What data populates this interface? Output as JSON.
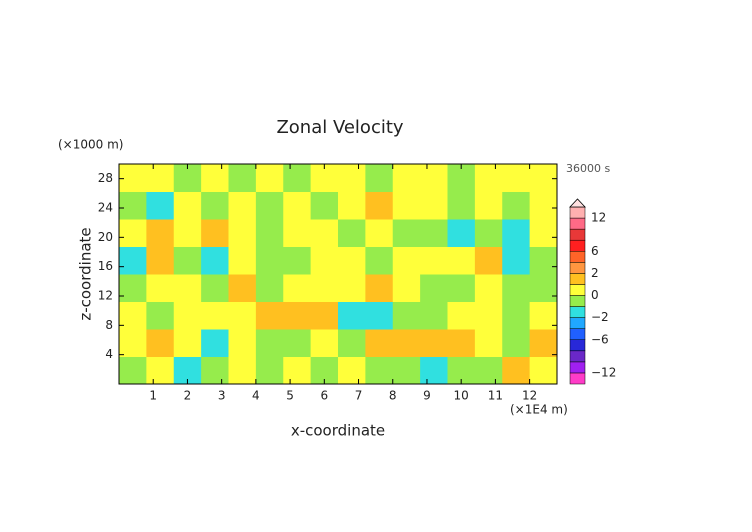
{
  "chart_data": {
    "type": "contour",
    "title": "Zonal Velocity",
    "x_label": "x-coordinate",
    "y_label": "z-coordinate",
    "x_unit": "(×1E4 m)",
    "y_unit": "(×1000 m)",
    "time_label": "36000 s",
    "xlim": [
      0,
      12.8
    ],
    "ylim": [
      0,
      30
    ],
    "xticks": [
      1,
      2,
      3,
      4,
      5,
      6,
      7,
      8,
      9,
      10,
      11,
      12
    ],
    "yticks": [
      4,
      8,
      12,
      16,
      20,
      24,
      28
    ],
    "x": [
      0.4,
      1.2,
      2.0,
      2.8,
      3.6,
      4.4,
      5.2,
      6.0,
      6.8,
      7.6,
      8.4,
      9.2,
      10.0,
      10.8,
      11.6,
      12.4
    ],
    "y": [
      1.875,
      5.625,
      9.375,
      13.125,
      16.875,
      20.625,
      24.375,
      28.125
    ],
    "z": [
      [
        -0.5,
        0.5,
        -1.5,
        -0.5,
        0.5,
        -0.5,
        0.5,
        -0.5,
        0.5,
        -0.5,
        -0.5,
        -1.5,
        -0.5,
        -0.5,
        1.5,
        0.5
      ],
      [
        0.5,
        1.5,
        0.5,
        -1.5,
        0.5,
        -0.5,
        -0.5,
        0.5,
        -0.5,
        1.5,
        1.5,
        1.5,
        1.5,
        0.5,
        -0.5,
        1.5
      ],
      [
        0.5,
        -0.5,
        0.5,
        0.5,
        0.5,
        1.5,
        1.5,
        1.5,
        -1.5,
        -1.5,
        -0.5,
        -0.5,
        0.5,
        0.5,
        -0.5,
        0.5
      ],
      [
        -0.5,
        0.5,
        0.5,
        -0.5,
        1.5,
        -0.5,
        0.5,
        0.5,
        0.5,
        1.5,
        0.5,
        -0.5,
        -0.5,
        0.5,
        -0.5,
        -0.5
      ],
      [
        -1.5,
        1.5,
        -0.5,
        -1.5,
        0.5,
        -0.5,
        -0.5,
        0.5,
        0.5,
        -0.5,
        0.5,
        0.5,
        0.5,
        1.5,
        -1.5,
        -0.5
      ],
      [
        0.5,
        1.5,
        0.5,
        1.5,
        0.5,
        -0.5,
        0.5,
        0.5,
        -0.5,
        0.5,
        -0.5,
        -0.5,
        -1.5,
        -0.5,
        -1.5,
        0.5
      ],
      [
        -0.5,
        -1.5,
        0.5,
        -0.5,
        0.5,
        -0.5,
        0.5,
        -0.5,
        0.5,
        1.5,
        0.5,
        0.5,
        -0.5,
        0.5,
        -0.5,
        0.5
      ],
      [
        0.5,
        0.5,
        -0.5,
        0.5,
        -0.5,
        0.5,
        -0.5,
        0.5,
        0.5,
        -0.5,
        0.5,
        0.5,
        -0.5,
        0.5,
        0.5,
        0.5
      ]
    ],
    "colorbar": {
      "levels": [
        -14,
        -12,
        -10,
        -8,
        -6,
        -4,
        -2,
        -1,
        0,
        1,
        2,
        4,
        6,
        8,
        10,
        12,
        14
      ],
      "colors": [
        "#ff3cc8",
        "#a020f0",
        "#6a28c8",
        "#2828d8",
        "#2060ff",
        "#20a8ff",
        "#30e0e0",
        "#96ec4c",
        "#ffff3a",
        "#ffc020",
        "#ff9640",
        "#ff6428",
        "#ff2020",
        "#e83838",
        "#ff6a86",
        "#ffb0b0"
      ],
      "ticks": [
        {
          "value": -12,
          "label": "−12"
        },
        {
          "value": -6,
          "label": "−6"
        },
        {
          "value": -2,
          "label": "−2"
        },
        0,
        2,
        6,
        12
      ]
    }
  }
}
